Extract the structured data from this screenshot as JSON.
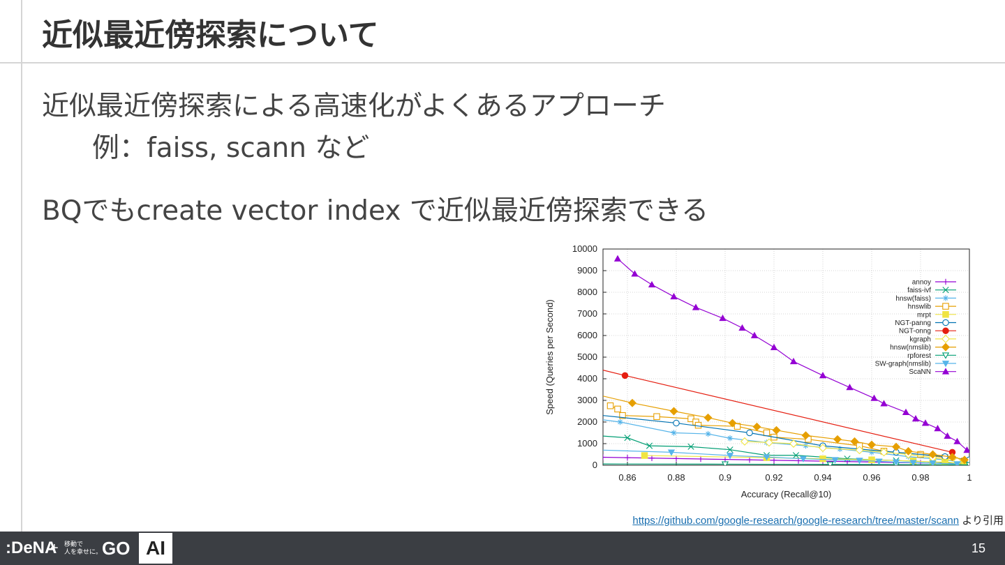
{
  "slide": {
    "title": "近似最近傍探索について",
    "line1": "近似最近傍探索による高速化がよくあるアプローチ",
    "line2": "例：faiss, scann など",
    "line3": "BQでもcreate vector index で近似最近傍探索できる",
    "credit_link": "https://github.com/google-research/google-research/tree/master/scann",
    "credit_suffix": " より引用",
    "page_number": "15"
  },
  "footer": {
    "logo_dena": ":DeNA",
    "logo_plus": "+",
    "logo_small_line1": "移動で",
    "logo_small_line2": "人を幸せに。",
    "logo_go": "GO",
    "ai_label": "AI"
  },
  "chart_data": {
    "type": "line",
    "xlabel": "Accuracy (Recall@10)",
    "ylabel": "Speed (Queries per Second)",
    "xlim": [
      0.85,
      1.0
    ],
    "ylim": [
      0,
      10000
    ],
    "xticks": [
      0.86,
      0.88,
      0.9,
      0.92,
      0.94,
      0.96,
      0.98,
      1
    ],
    "xtick_labels": [
      "0.86",
      "0.88",
      "0.9",
      "0.92",
      "0.94",
      "0.96",
      "0.98",
      "1"
    ],
    "yticks": [
      0,
      1000,
      2000,
      3000,
      4000,
      5000,
      6000,
      7000,
      8000,
      9000,
      10000
    ],
    "grid": true,
    "legend": "top-right",
    "series": [
      {
        "name": "annoy",
        "color": "#9400d3",
        "marker": "plus",
        "x": [
          0.85,
          0.86,
          0.87,
          0.88,
          0.89,
          0.9,
          0.91,
          0.92,
          0.93,
          0.94,
          0.95,
          0.96,
          0.97,
          0.98,
          0.99,
          0.995,
          1.0
        ],
        "y": [
          370,
          350,
          330,
          310,
          290,
          270,
          250,
          230,
          210,
          190,
          170,
          150,
          130,
          110,
          90,
          70,
          50
        ]
      },
      {
        "name": "faiss-ivf",
        "color": "#009e73",
        "marker": "x",
        "x": [
          0.85,
          0.86,
          0.869,
          0.886,
          0.902,
          0.917,
          0.929,
          0.95,
          0.97,
          0.99,
          1.0
        ],
        "y": [
          1350,
          1270,
          900,
          860,
          720,
          460,
          460,
          300,
          220,
          130,
          60
        ]
      },
      {
        "name": "hnsw(faiss)",
        "color": "#56b4e9",
        "marker": "star",
        "x": [
          0.85,
          0.857,
          0.879,
          0.893,
          0.902,
          0.917,
          0.933,
          0.947,
          0.96,
          0.975,
          0.99,
          1.0
        ],
        "y": [
          2100,
          2000,
          1500,
          1450,
          1250,
          1050,
          900,
          750,
          600,
          400,
          250,
          100
        ]
      },
      {
        "name": "hnswlib",
        "color": "#e69f00",
        "marker": "square",
        "x": [
          0.853,
          0.856,
          0.858,
          0.872,
          0.886,
          0.888,
          0.889,
          0.905,
          0.917,
          0.92,
          0.934,
          0.955,
          0.965,
          0.98,
          0.99,
          0.998
        ],
        "y": [
          2750,
          2600,
          2300,
          2250,
          2150,
          2000,
          1850,
          1800,
          1500,
          1300,
          1200,
          900,
          650,
          500,
          350,
          200
        ]
      },
      {
        "name": "mrpt",
        "color": "#f0e442",
        "marker": "fsquare",
        "x": [
          0.867,
          0.917,
          0.94,
          0.96,
          0.977,
          0.985,
          0.99,
          0.995,
          0.998
        ],
        "y": [
          450,
          350,
          300,
          250,
          200,
          150,
          150,
          100,
          100
        ]
      },
      {
        "name": "NGT-panng",
        "color": "#0072b2",
        "marker": "circle",
        "x": [
          0.85,
          0.88,
          0.91,
          0.94,
          0.97,
          0.99,
          1.0
        ],
        "y": [
          2300,
          1950,
          1500,
          900,
          600,
          400,
          250
        ]
      },
      {
        "name": "NGT-onng",
        "color": "#e51e10",
        "marker": "fcircle",
        "x": [
          0.85,
          0.859,
          0.993
        ],
        "y": [
          4400,
          4150,
          600
        ]
      },
      {
        "name": "kgraph",
        "color": "#f0e442",
        "marker": "diamond",
        "x": [
          0.908,
          0.918,
          0.928,
          0.94,
          0.955,
          0.965,
          0.975,
          0.985,
          0.995
        ],
        "y": [
          1100,
          1050,
          1000,
          800,
          700,
          600,
          500,
          350,
          200
        ]
      },
      {
        "name": "hnsw(nmslib)",
        "color": "#e69f00",
        "marker": "fdiamond",
        "x": [
          0.85,
          0.862,
          0.879,
          0.893,
          0.903,
          0.913,
          0.921,
          0.933,
          0.946,
          0.953,
          0.96,
          0.97,
          0.975,
          0.985,
          0.993,
          0.998
        ],
        "y": [
          3200,
          2880,
          2500,
          2200,
          1950,
          1780,
          1620,
          1380,
          1200,
          1100,
          950,
          850,
          650,
          500,
          380,
          250
        ]
      },
      {
        "name": "rpforest",
        "color": "#009e73",
        "marker": "triangledown",
        "x": [
          0.85,
          0.9,
          0.943,
          0.97,
          1.0
        ],
        "y": [
          60,
          50,
          40,
          30,
          20
        ]
      },
      {
        "name": "SW-graph(nmslib)",
        "color": "#56b4e9",
        "marker": "ftriangledown",
        "x": [
          0.85,
          0.878,
          0.902,
          0.917,
          0.932,
          0.945,
          0.955,
          0.963,
          0.97,
          0.977,
          0.985,
          0.995
        ],
        "y": [
          700,
          600,
          450,
          380,
          300,
          250,
          220,
          180,
          150,
          120,
          100,
          60
        ]
      },
      {
        "name": "ScaNN",
        "color": "#9400d3",
        "marker": "ftriangle",
        "x": [
          0.856,
          0.863,
          0.87,
          0.879,
          0.888,
          0.899,
          0.907,
          0.912,
          0.92,
          0.928,
          0.94,
          0.951,
          0.961,
          0.965,
          0.974,
          0.978,
          0.982,
          0.987,
          0.991,
          0.995,
          0.999
        ],
        "y": [
          9550,
          8850,
          8350,
          7800,
          7300,
          6800,
          6350,
          6000,
          5450,
          4800,
          4150,
          3600,
          3100,
          2850,
          2450,
          2150,
          1950,
          1700,
          1350,
          1100,
          700
        ]
      }
    ]
  }
}
